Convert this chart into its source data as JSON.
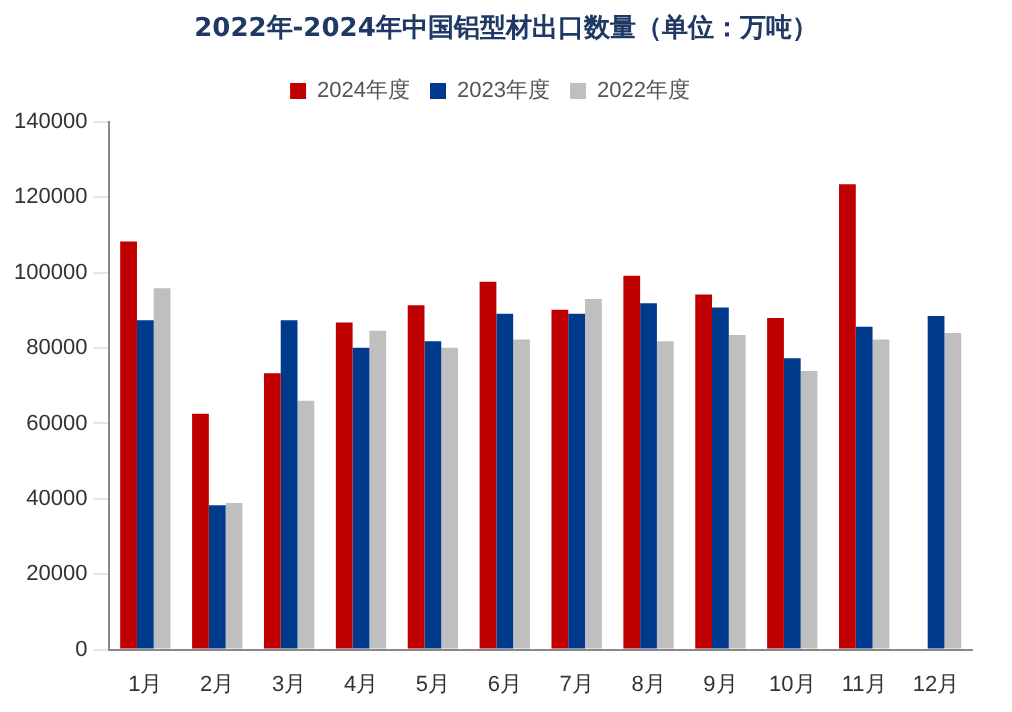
{
  "chart_data": {
    "type": "bar",
    "title": "2022年-2024年中国铝型材出口数量（单位：万吨）",
    "categories": [
      "1月",
      "2月",
      "3月",
      "4月",
      "5月",
      "6月",
      "7月",
      "8月",
      "9月",
      "10月",
      "11月",
      "12月"
    ],
    "series": [
      {
        "name": "2024年度",
        "color": "#c00000",
        "values": [
          108300,
          62600,
          73300,
          86800,
          91400,
          97600,
          90200,
          99200,
          94200,
          88000,
          123500,
          null
        ]
      },
      {
        "name": "2023年度",
        "color": "#003a8c",
        "values": [
          87400,
          38300,
          87400,
          80100,
          81800,
          89100,
          89100,
          91900,
          90800,
          77300,
          85700,
          88500
        ]
      },
      {
        "name": "2022年度",
        "color": "#bfbfbf",
        "values": [
          95900,
          38900,
          66000,
          84600,
          80100,
          82300,
          93000,
          81800,
          83500,
          73900,
          82300,
          84000
        ]
      }
    ],
    "ylim": [
      0,
      140000
    ],
    "yticks": [
      0,
      20000,
      40000,
      60000,
      80000,
      100000,
      120000,
      140000
    ],
    "grid": false,
    "legend": "top"
  }
}
